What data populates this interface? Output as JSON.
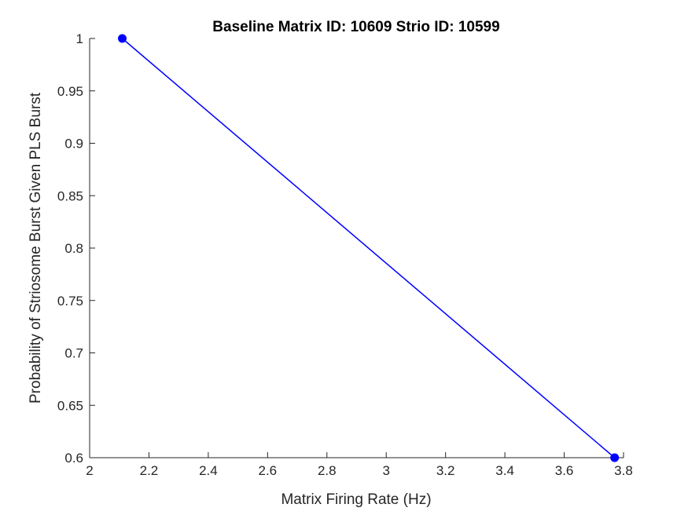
{
  "chart_data": {
    "type": "line",
    "title": "Baseline Matrix ID: 10609 Strio ID: 10599",
    "xlabel": "Matrix Firing Rate (Hz)",
    "ylabel": "Probability of Striosome Burst Given PLS Burst",
    "xlim": [
      2,
      3.8
    ],
    "ylim": [
      0.6,
      1
    ],
    "xticks": [
      2,
      2.2,
      2.4,
      2.6,
      2.8,
      3,
      3.2,
      3.4,
      3.6,
      3.8
    ],
    "xtick_labels": [
      "2",
      "2.2",
      "2.4",
      "2.6",
      "2.8",
      "3",
      "3.2",
      "3.4",
      "3.6",
      "3.8"
    ],
    "yticks": [
      0.6,
      0.65,
      0.7,
      0.75,
      0.8,
      0.85,
      0.9,
      0.95,
      1
    ],
    "ytick_labels": [
      "0.6",
      "0.65",
      "0.7",
      "0.75",
      "0.8",
      "0.85",
      "0.9",
      "0.95",
      "1"
    ],
    "grid": false,
    "series": [
      {
        "x": [
          2.11,
          3.77
        ],
        "y": [
          1.0,
          0.6
        ],
        "color": "#0000ff",
        "marker": "circle"
      }
    ]
  },
  "colors": {
    "axis": "#262626",
    "series": "#0000ff",
    "background": "#ffffff"
  }
}
